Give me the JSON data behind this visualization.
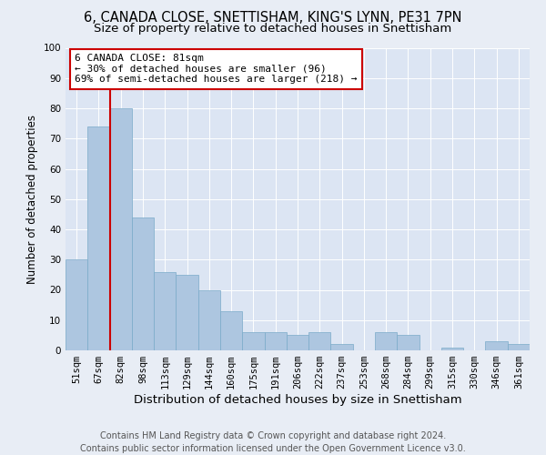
{
  "title": "6, CANADA CLOSE, SNETTISHAM, KING'S LYNN, PE31 7PN",
  "subtitle": "Size of property relative to detached houses in Snettisham",
  "xlabel": "Distribution of detached houses by size in Snettisham",
  "ylabel": "Number of detached properties",
  "annotation_title": "6 CANADA CLOSE: 81sqm",
  "annotation_line1": "← 30% of detached houses are smaller (96)",
  "annotation_line2": "69% of semi-detached houses are larger (218) →",
  "footer_line1": "Contains HM Land Registry data © Crown copyright and database right 2024.",
  "footer_line2": "Contains public sector information licensed under the Open Government Licence v3.0.",
  "bar_labels": [
    "51sqm",
    "67sqm",
    "82sqm",
    "98sqm",
    "113sqm",
    "129sqm",
    "144sqm",
    "160sqm",
    "175sqm",
    "191sqm",
    "206sqm",
    "222sqm",
    "237sqm",
    "253sqm",
    "268sqm",
    "284sqm",
    "299sqm",
    "315sqm",
    "330sqm",
    "346sqm",
    "361sqm"
  ],
  "bar_values": [
    30,
    74,
    80,
    44,
    26,
    25,
    20,
    13,
    6,
    6,
    5,
    6,
    2,
    0,
    6,
    5,
    0,
    1,
    0,
    3,
    2
  ],
  "bar_color": "#adc6e0",
  "bar_edge_color": "#7aaac8",
  "vline_color": "#cc0000",
  "annotation_box_color": "#cc0000",
  "ylim": [
    0,
    100
  ],
  "yticks": [
    0,
    10,
    20,
    30,
    40,
    50,
    60,
    70,
    80,
    90,
    100
  ],
  "background_color": "#e8edf5",
  "plot_bg_color": "#dce5f3",
  "grid_color": "#ffffff",
  "title_fontsize": 10.5,
  "subtitle_fontsize": 9.5,
  "xlabel_fontsize": 9.5,
  "ylabel_fontsize": 8.5,
  "tick_fontsize": 7.5,
  "annotation_fontsize": 8,
  "footer_fontsize": 7
}
